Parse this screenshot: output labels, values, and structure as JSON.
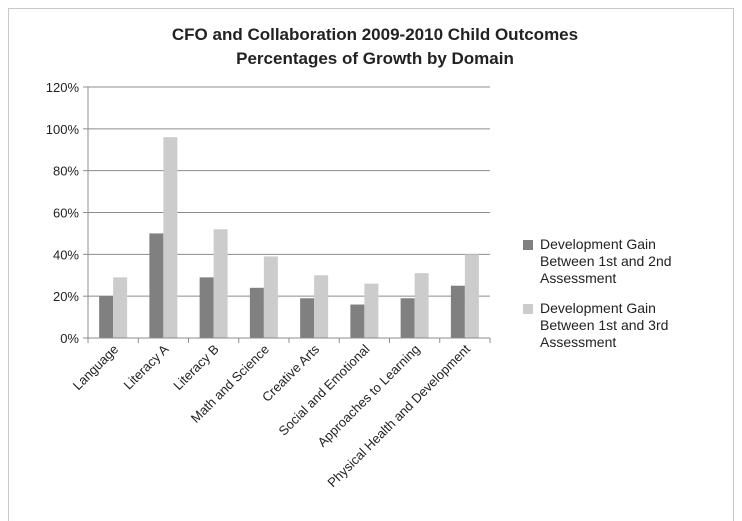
{
  "chart_data": {
    "type": "bar",
    "title": "CFO and Collaboration 2009-2010 Child Outcomes",
    "subtitle": "Percentages of Growth by Domain",
    "xlabel": "",
    "ylabel": "",
    "ylim": [
      0,
      120
    ],
    "yticks": [
      "0%",
      "20%",
      "40%",
      "60%",
      "80%",
      "100%",
      "120%"
    ],
    "categories": [
      "Language",
      "Literacy A",
      "Literacy B",
      "Math and Science",
      "Creative Arts",
      "Social and Emotional",
      "Approaches to Learning",
      "Physical Health and Development"
    ],
    "series": [
      {
        "name": "Development Gain Between 1st and 2nd Assessment",
        "legend_lines": [
          "Development Gain",
          "Between 1st and 2nd",
          "Assessment"
        ],
        "color": "#808080",
        "values": [
          20,
          50,
          29,
          24,
          19,
          16,
          19,
          25
        ]
      },
      {
        "name": "Development Gain Between 1st and 3rd Assessment",
        "legend_lines": [
          "Development Gain",
          "Between 1st and 3rd",
          "Assessment"
        ],
        "color": "#cccccc",
        "values": [
          29,
          96,
          52,
          39,
          30,
          26,
          31,
          40
        ]
      }
    ],
    "grid": true,
    "legend_position": "right"
  }
}
